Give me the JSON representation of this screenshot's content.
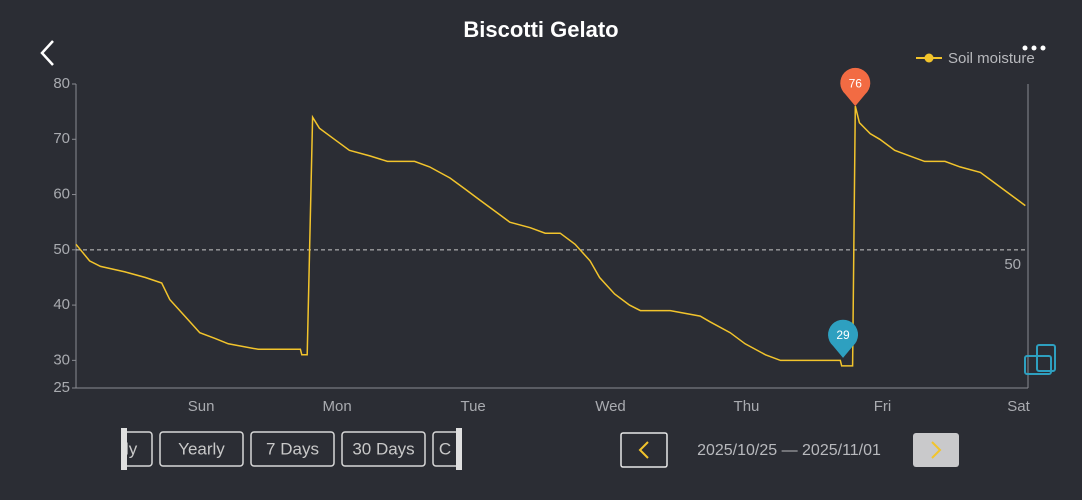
{
  "header": {
    "title": "Biscotti Gelato"
  },
  "chart_data": {
    "type": "line",
    "series": [
      {
        "name": "Soil moisture",
        "color": "#f2c42c",
        "x": [
          0,
          0.1,
          0.18,
          0.36,
          0.51,
          0.63,
          0.69,
          0.8,
          0.91,
          1.02,
          1.12,
          1.34,
          1.65,
          1.66,
          1.7,
          1.74,
          1.79,
          1.9,
          2.01,
          2.16,
          2.29,
          2.49,
          2.6,
          2.75,
          2.86,
          2.97,
          3.08,
          3.19,
          3.34,
          3.45,
          3.56,
          3.67,
          3.78,
          3.85,
          3.96,
          4.07,
          4.15,
          4.37,
          4.59,
          4.66,
          4.81,
          4.92,
          5.07,
          5.18,
          5.62,
          5.63,
          5.71,
          5.73,
          5.76,
          5.84,
          5.91,
          6.02,
          6.13,
          6.24,
          6.39,
          6.5,
          6.65,
          6.76,
          6.87,
          6.98
        ],
        "values": [
          51,
          48,
          47,
          46,
          45,
          44,
          41,
          38,
          35,
          34,
          33,
          32,
          32,
          31,
          31,
          74,
          72,
          70,
          68,
          67,
          66,
          66,
          65,
          63,
          61,
          59,
          57,
          55,
          54,
          53,
          53,
          51,
          48,
          45,
          42,
          40,
          39,
          39,
          38,
          37,
          35,
          33,
          31,
          30,
          30,
          29,
          29,
          76,
          73,
          71,
          70,
          68,
          67,
          66,
          66,
          65,
          64,
          62,
          60,
          58
        ]
      }
    ],
    "xlim": [
      0,
      7
    ],
    "xticks": [
      {
        "value": 0.92,
        "label": "Sun"
      },
      {
        "value": 1.92,
        "label": "Mon"
      },
      {
        "value": 2.92,
        "label": "Tue"
      },
      {
        "value": 3.93,
        "label": "Wed"
      },
      {
        "value": 4.93,
        "label": "Thu"
      },
      {
        "value": 5.93,
        "label": "Fri"
      },
      {
        "value": 6.93,
        "label": "Sat"
      }
    ],
    "ylim": [
      25,
      80
    ],
    "yticks": [
      25,
      30,
      40,
      50,
      60,
      70,
      80
    ],
    "reference_line": 50,
    "markers": [
      {
        "x": 5.73,
        "value": 76,
        "color": "#f26b43"
      },
      {
        "x": 5.64,
        "value": 29,
        "color": "#2ea0c0"
      }
    ],
    "legend": "top-right"
  },
  "tabs": {
    "items": [
      "ly",
      "Yearly",
      "7 Days",
      "30 Days",
      "C"
    ],
    "active": 2
  },
  "date_range": "2025/10/25 — 2025/11/01"
}
